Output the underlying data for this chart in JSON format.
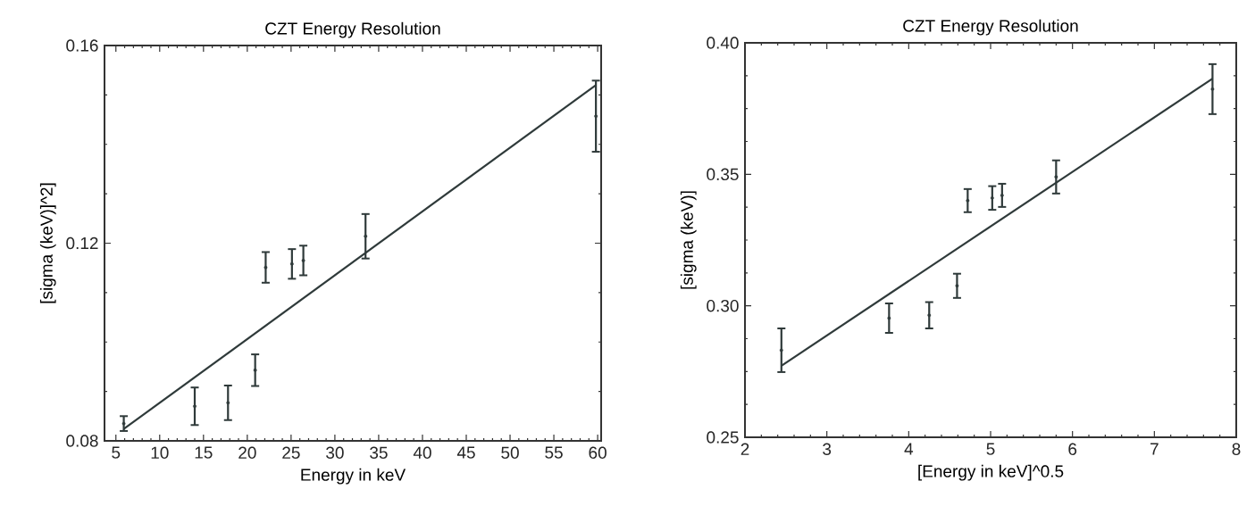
{
  "chart_data": [
    {
      "type": "scatter",
      "title": "CZT Energy Resolution",
      "xlabel": "Energy in keV",
      "ylabel": "[sigma (keV)]^2]",
      "xlim": [
        3.7,
        60.4
      ],
      "ylim": [
        0.08,
        0.16
      ],
      "xticks": [
        5,
        10,
        15,
        20,
        25,
        30,
        35,
        40,
        45,
        50,
        55,
        60
      ],
      "yticks": [
        {
          "value": 0.08,
          "label": "0.08"
        },
        {
          "value": 0.12,
          "label": "0.12"
        },
        {
          "value": 0.16,
          "label": "0.16"
        }
      ],
      "grid": false,
      "series": [
        {
          "color": "#2f3a3a",
          "x": [
            5.9,
            14.0,
            17.8,
            20.9,
            22.1,
            25.1,
            26.4,
            33.5,
            59.8
          ],
          "values": [
            0.0835,
            0.087,
            0.0877,
            0.0943,
            0.1151,
            0.1158,
            0.1165,
            0.1214,
            0.1457
          ],
          "errors": [
            0.0015,
            0.0038,
            0.0035,
            0.0032,
            0.0031,
            0.003,
            0.003,
            0.0045,
            0.0072
          ]
        },
        {
          "type": "line",
          "marker": "none",
          "line_style": "solid",
          "color": "#2f3a3a",
          "x": [
            5.9,
            59.8
          ],
          "values": [
            0.0824,
            0.152
          ]
        }
      ]
    },
    {
      "type": "scatter",
      "title": "CZT Energy Resolution",
      "xlabel": "[Energy in keV]^0.5",
      "ylabel": "[sigma (keV)]",
      "xlim": [
        2,
        8
      ],
      "ylim": [
        0.25,
        0.4
      ],
      "xticks": [
        2,
        3,
        4,
        5,
        6,
        7,
        8
      ],
      "yticks": [
        {
          "value": 0.25,
          "label": "0.25"
        },
        {
          "value": 0.3,
          "label": "0.30"
        },
        {
          "value": 0.35,
          "label": "0.35"
        },
        {
          "value": 0.4,
          "label": "0.40"
        }
      ],
      "grid": false,
      "series": [
        {
          "color": "#2f3a3a",
          "x": [
            2.445,
            3.76,
            4.25,
            4.59,
            4.72,
            5.02,
            5.14,
            5.8,
            7.71
          ],
          "values": [
            0.2831,
            0.2953,
            0.2964,
            0.3076,
            0.34,
            0.341,
            0.342,
            0.349,
            0.3824
          ],
          "errors": [
            0.0083,
            0.0056,
            0.005,
            0.0046,
            0.0044,
            0.0045,
            0.0044,
            0.0063,
            0.0095
          ]
        },
        {
          "type": "line",
          "marker": "none",
          "line_style": "solid",
          "color": "#2f3a3a",
          "x": [
            2.445,
            7.71
          ],
          "values": [
            0.2772,
            0.3864
          ]
        }
      ]
    }
  ]
}
